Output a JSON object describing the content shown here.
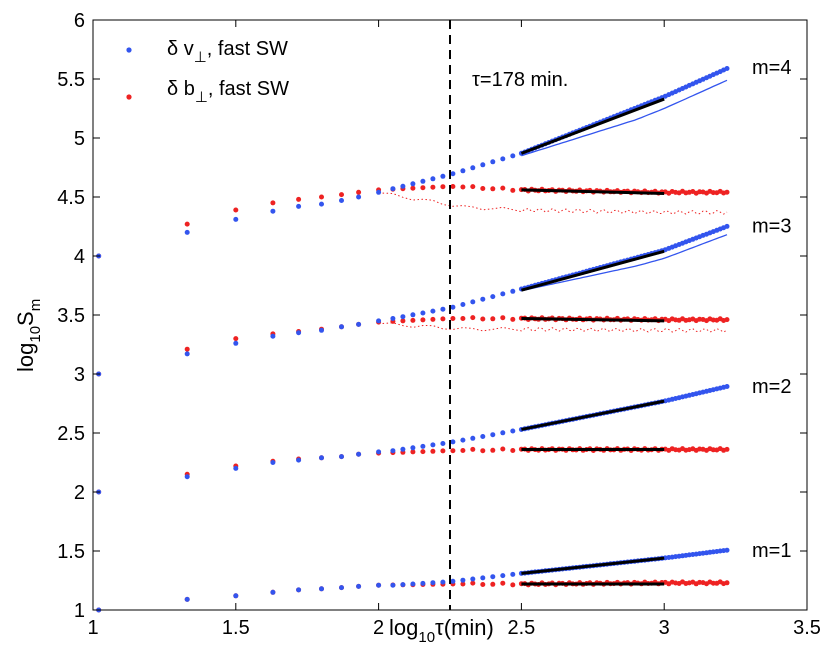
{
  "chart_data": {
    "type": "scatter",
    "xlabel": {
      "main": "log",
      "sub": "10",
      "rest": "τ(min)"
    },
    "ylabel": {
      "main": "log",
      "sub": "10",
      "rest": "S",
      "sub2": "m"
    },
    "xlim": [
      1,
      3.5
    ],
    "ylim": [
      1,
      6
    ],
    "xticks": [
      "1",
      "1.5",
      "2",
      "2.5",
      "3",
      "3.5"
    ],
    "xtick_values": [
      1,
      1.5,
      2,
      2.5,
      3,
      3.5
    ],
    "yticks": [
      "1",
      "1.5",
      "2",
      "2.5",
      "3",
      "3.5",
      "4",
      "4.5",
      "5",
      "5.5",
      "6"
    ],
    "ytick_values": [
      1,
      1.5,
      2,
      2.5,
      3,
      3.5,
      4,
      4.5,
      5,
      5.5,
      6
    ],
    "legend": [
      {
        "label": "δ v",
        "sub": "⊥",
        "rest": ", fast SW",
        "color": "#3355ee"
      },
      {
        "label": "δ b",
        "sub": "⊥",
        "rest": ", fast SW",
        "color": "#ee2222"
      }
    ],
    "vline": {
      "x": 2.25,
      "label": "τ=178 min."
    },
    "colors": {
      "v": "#3355ee",
      "b": "#ee2222",
      "fit": "#000000"
    },
    "series": [
      {
        "m": 1,
        "label": "m=1",
        "v": [
          [
            1.02,
            1.0
          ],
          [
            1.33,
            1.09
          ],
          [
            1.5,
            1.12
          ],
          [
            1.63,
            1.15
          ],
          [
            1.72,
            1.17
          ],
          [
            1.8,
            1.18
          ],
          [
            1.87,
            1.19
          ],
          [
            1.93,
            1.2
          ],
          [
            2.0,
            1.21
          ],
          [
            2.05,
            1.21
          ],
          [
            2.25,
            1.24
          ],
          [
            2.5,
            1.31
          ],
          [
            3.0,
            1.44
          ],
          [
            3.23,
            1.51
          ]
        ],
        "b": [
          [
            1.02,
            1.0
          ],
          [
            1.33,
            1.09
          ],
          [
            1.5,
            1.12
          ],
          [
            1.63,
            1.15
          ],
          [
            1.72,
            1.17
          ],
          [
            1.8,
            1.18
          ],
          [
            1.87,
            1.19
          ],
          [
            1.93,
            1.2
          ],
          [
            2.0,
            1.21
          ],
          [
            2.25,
            1.22
          ],
          [
            2.5,
            1.22
          ],
          [
            3.0,
            1.23
          ],
          [
            3.23,
            1.23
          ]
        ],
        "fits": [
          [
            [
              2.5,
              1.31
            ],
            [
              3.0,
              1.44
            ]
          ],
          [
            [
              2.5,
              1.22
            ],
            [
              3.0,
              1.22
            ]
          ]
        ]
      },
      {
        "m": 2,
        "label": "m=2",
        "v": [
          [
            1.02,
            2.0
          ],
          [
            1.33,
            2.13
          ],
          [
            1.5,
            2.2
          ],
          [
            1.63,
            2.25
          ],
          [
            1.72,
            2.27
          ],
          [
            1.8,
            2.29
          ],
          [
            1.87,
            2.3
          ],
          [
            1.93,
            2.32
          ],
          [
            2.0,
            2.34
          ],
          [
            2.05,
            2.35
          ],
          [
            2.25,
            2.42
          ],
          [
            2.5,
            2.53
          ],
          [
            3.0,
            2.77
          ],
          [
            3.23,
            2.9
          ]
        ],
        "b": [
          [
            1.02,
            2.0
          ],
          [
            1.33,
            2.15
          ],
          [
            1.5,
            2.22
          ],
          [
            1.63,
            2.26
          ],
          [
            1.72,
            2.28
          ],
          [
            1.8,
            2.29
          ],
          [
            1.87,
            2.3
          ],
          [
            1.93,
            2.32
          ],
          [
            2.0,
            2.33
          ],
          [
            2.25,
            2.35
          ],
          [
            2.5,
            2.36
          ],
          [
            3.0,
            2.36
          ],
          [
            3.23,
            2.36
          ]
        ],
        "fits": [
          [
            [
              2.5,
              2.53
            ],
            [
              3.0,
              2.77
            ]
          ],
          [
            [
              2.5,
              2.36
            ],
            [
              3.0,
              2.36
            ]
          ]
        ]
      },
      {
        "m": 3,
        "label": "m=3",
        "v": [
          [
            1.02,
            3.0
          ],
          [
            1.33,
            3.17
          ],
          [
            1.5,
            3.26
          ],
          [
            1.63,
            3.32
          ],
          [
            1.72,
            3.35
          ],
          [
            1.8,
            3.37
          ],
          [
            1.87,
            3.4
          ],
          [
            1.93,
            3.42
          ],
          [
            2.0,
            3.45
          ],
          [
            2.05,
            3.47
          ],
          [
            2.25,
            3.56
          ],
          [
            2.5,
            3.72
          ],
          [
            3.0,
            4.05
          ],
          [
            3.23,
            4.26
          ]
        ],
        "b": [
          [
            1.02,
            3.0
          ],
          [
            1.33,
            3.21
          ],
          [
            1.5,
            3.3
          ],
          [
            1.63,
            3.34
          ],
          [
            1.72,
            3.36
          ],
          [
            1.8,
            3.38
          ],
          [
            1.87,
            3.4
          ],
          [
            1.93,
            3.42
          ],
          [
            2.0,
            3.44
          ],
          [
            2.25,
            3.47
          ],
          [
            2.5,
            3.47
          ],
          [
            3.0,
            3.46
          ],
          [
            3.23,
            3.46
          ]
        ],
        "fits": [
          [
            [
              2.5,
              3.71
            ],
            [
              3.0,
              4.04
            ]
          ],
          [
            [
              2.5,
              3.47
            ],
            [
              3.0,
              3.45
            ]
          ]
        ]
      },
      {
        "m": 4,
        "label": "m=4",
        "v": [
          [
            1.02,
            4.0
          ],
          [
            1.33,
            4.2
          ],
          [
            1.5,
            4.31
          ],
          [
            1.63,
            4.38
          ],
          [
            1.72,
            4.42
          ],
          [
            1.8,
            4.44
          ],
          [
            1.87,
            4.47
          ],
          [
            1.93,
            4.5
          ],
          [
            2.0,
            4.54
          ],
          [
            2.05,
            4.57
          ],
          [
            2.25,
            4.69
          ],
          [
            2.5,
            4.87
          ],
          [
            3.0,
            5.35
          ],
          [
            3.23,
            5.6
          ]
        ],
        "b": [
          [
            1.02,
            4.0
          ],
          [
            1.33,
            4.27
          ],
          [
            1.5,
            4.39
          ],
          [
            1.63,
            4.45
          ],
          [
            1.72,
            4.48
          ],
          [
            1.8,
            4.5
          ],
          [
            1.87,
            4.52
          ],
          [
            1.93,
            4.54
          ],
          [
            2.0,
            4.56
          ],
          [
            2.25,
            4.59
          ],
          [
            2.5,
            4.56
          ],
          [
            3.0,
            4.54
          ],
          [
            3.23,
            4.54
          ]
        ],
        "fits": [
          [
            [
              2.5,
              4.87
            ],
            [
              3.0,
              5.33
            ]
          ],
          [
            [
              2.5,
              4.56
            ],
            [
              3.0,
              4.53
            ]
          ]
        ]
      }
    ]
  }
}
